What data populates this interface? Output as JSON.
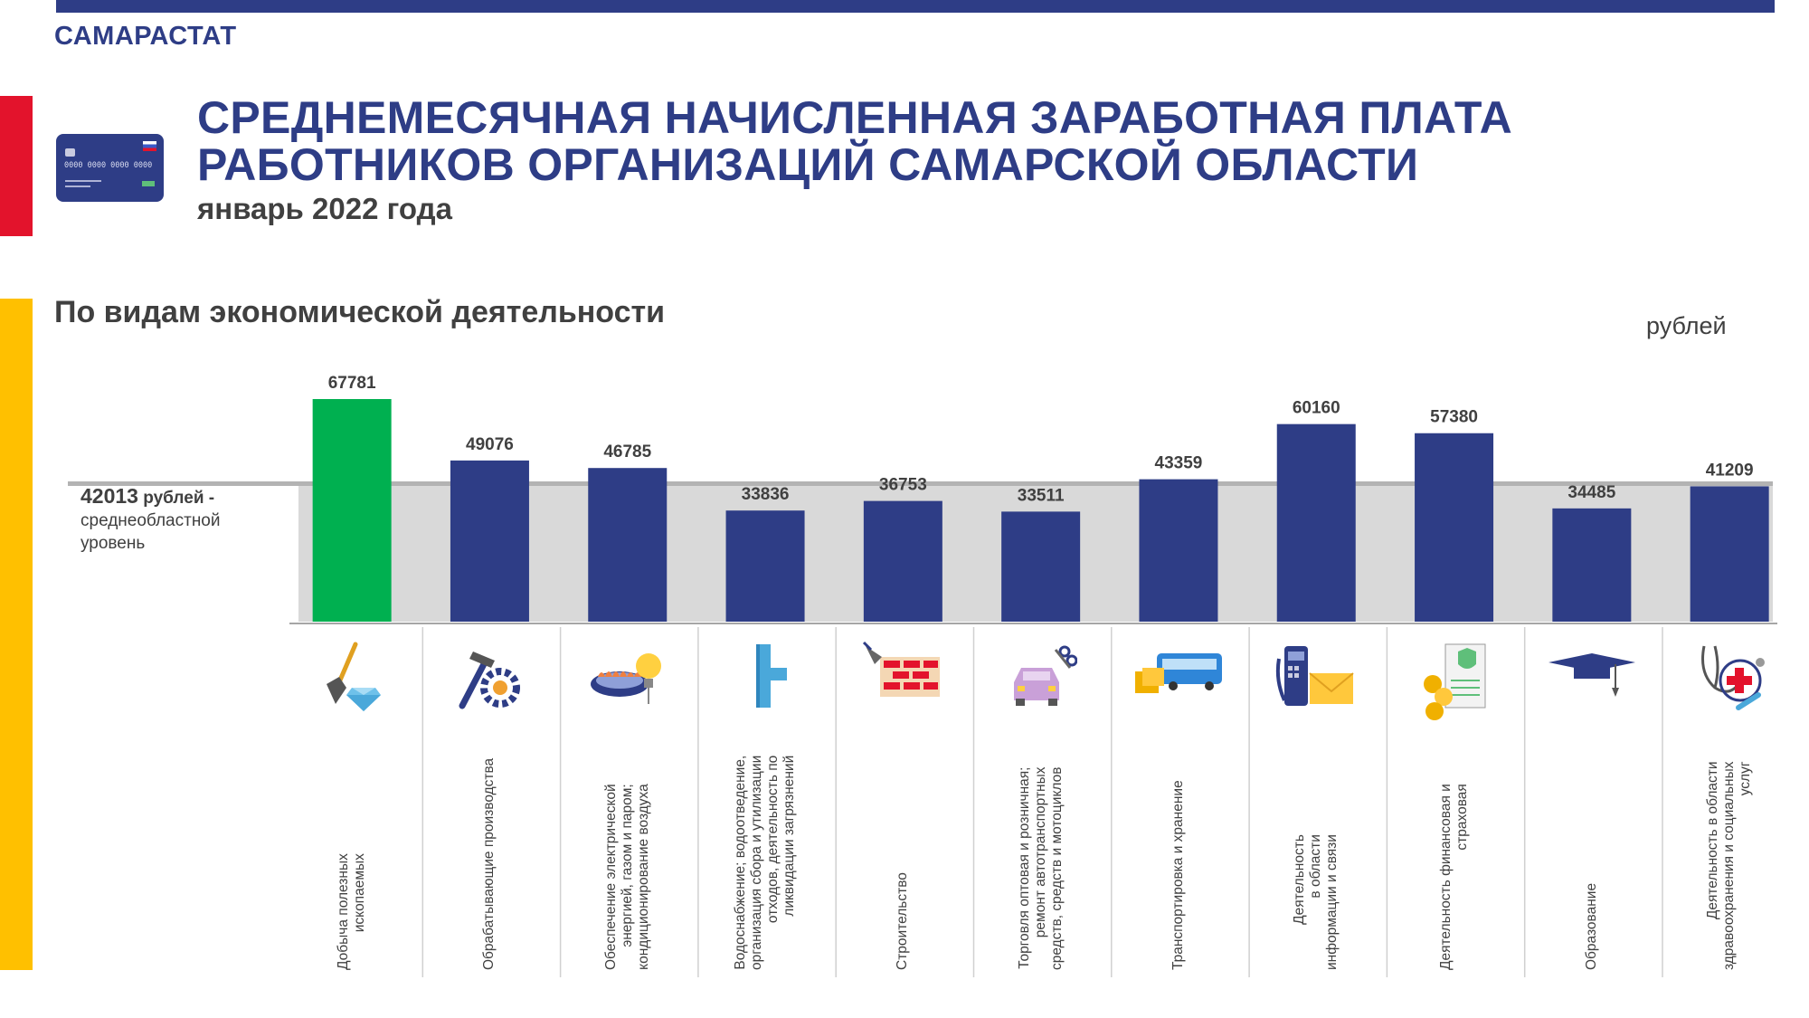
{
  "header": {
    "org": "САМАРАСТАТ",
    "title_line1": "СРЕДНЕМЕСЯЧНАЯ НАЧИСЛЕННАЯ ЗАРАБОТНАЯ ПЛАТА",
    "title_line2": "РАБОТНИКОВ ОРГАНИЗАЦИЙ САМАРСКОЙ ОБЛАСТИ",
    "period": "январь 2022 года",
    "card_number": "0000 0000 0000 0000"
  },
  "section_title": "По видам экономической деятельности",
  "unit": "рублей",
  "average": {
    "value": "42013",
    "unit_text": "рублей -",
    "description_line1": "среднеобластной",
    "description_line2": "уровень"
  },
  "colors": {
    "brand": "#2e3d86",
    "highlight": "#00b050",
    "average_band": "#d9d9d9",
    "text": "#404040",
    "red_strip": "#e3132c",
    "yellow_strip": "#ffc000"
  },
  "chart_data": {
    "type": "bar",
    "average": 42013,
    "ylim": [
      0,
      70000
    ],
    "categories": [
      [
        "Добыча полезных",
        "ископаемых"
      ],
      [
        "Обрабатывающие производства"
      ],
      [
        "Обеспечение электрической",
        "энергией, газом и паром;",
        "кондиционирование воздуха"
      ],
      [
        "Водоснабжение; водоотведение,",
        "организация сбора и утилизации",
        "отходов, деятельность по",
        "ликвидации  загрязнений"
      ],
      [
        "Строительство"
      ],
      [
        "Торговля оптовая и розничная;",
        "ремонт автотранспортных",
        "средств, средств и мотоциклов"
      ],
      [
        "Транспортировка и хранение"
      ],
      [
        "Деятельность",
        "в области",
        "информации и связи"
      ],
      [
        "Деятельность финансовая и",
        "страховая"
      ],
      [
        "Образование"
      ],
      [
        "Деятельность в области",
        "здравоохранения и социальных",
        "услуг"
      ]
    ],
    "values": [
      67781,
      49076,
      46785,
      33836,
      36753,
      33511,
      43359,
      60160,
      57380,
      34485,
      41209
    ],
    "value_labels": [
      "67781",
      "49076",
      "46785",
      "33836",
      "36753",
      "33511",
      "43359",
      "60160",
      "57380",
      "34485",
      "41209"
    ],
    "highlight_index": 0,
    "icons": [
      "shovel-diamond-icon",
      "hammer-gear-icon",
      "gas-burner-bulb-icon",
      "water-pipe-icon",
      "brick-wall-icon",
      "car-repair-icon",
      "bus-truck-icon",
      "phone-mail-icon",
      "finance-document-icon",
      "graduation-cap-icon",
      "stethoscope-medical-icon"
    ]
  }
}
